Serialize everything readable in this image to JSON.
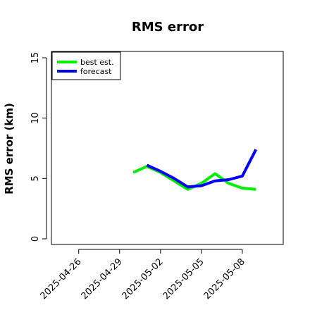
{
  "chart_data": {
    "type": "line",
    "title": "RMS error",
    "xlabel": "",
    "ylabel": "RMS error (km)",
    "ylim": [
      0,
      15
    ],
    "yticks": [
      0,
      5,
      10,
      15
    ],
    "ytick_labels": [
      "0",
      "5",
      "10",
      "15"
    ],
    "xlim": [
      "2025-04-24",
      "2025-05-11"
    ],
    "xticks": [
      "2025-04-26",
      "2025-04-29",
      "2025-05-02",
      "2025-05-05",
      "2025-05-08"
    ],
    "xtick_labels": [
      "2025-04-26",
      "2025-04-29",
      "2025-05-02",
      "2025-05-05",
      "2025-05-08"
    ],
    "grid": false,
    "legend_position": "top-left",
    "series": [
      {
        "name": "best est.",
        "color": "#00ee00",
        "x": [
          "2025-04-30",
          "2025-05-01",
          "2025-05-02",
          "2025-05-03",
          "2025-05-04",
          "2025-05-05",
          "2025-05-06",
          "2025-05-07",
          "2025-05-08",
          "2025-05-09"
        ],
        "y": [
          5.5,
          6.0,
          5.5,
          4.8,
          4.1,
          4.6,
          5.4,
          4.6,
          4.2,
          4.1
        ]
      },
      {
        "name": "forecast",
        "color": "#0000ff",
        "x": [
          "2025-05-01",
          "2025-05-02",
          "2025-05-03",
          "2025-05-04",
          "2025-05-05",
          "2025-05-06",
          "2025-05-07",
          "2025-05-08",
          "2025-05-09"
        ],
        "y": [
          6.1,
          5.6,
          5.0,
          4.3,
          4.4,
          4.8,
          4.9,
          5.2,
          7.4
        ]
      }
    ]
  }
}
